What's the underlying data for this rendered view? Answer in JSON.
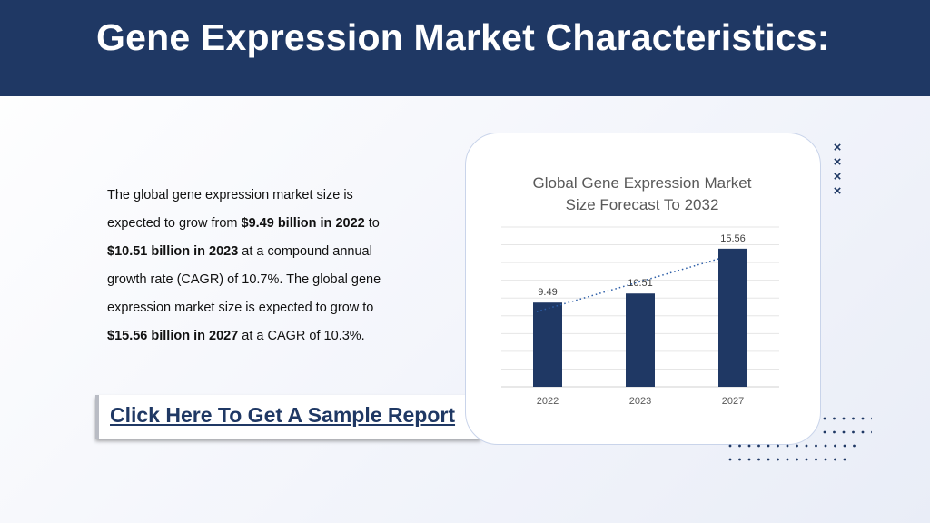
{
  "header": {
    "title": "Gene Expression Market Characteristics:"
  },
  "content": {
    "p1": "The global gene expression market size is expected to grow from ",
    "b1": "$9.49 billion in 2022",
    "p2": " to ",
    "b2": "$10.51 billion in 2023",
    "p3": " at a compound annual growth rate (CAGR) of 10.7%. The global gene expression market size is expected to grow to ",
    "b3": "$15.56 billion in 2027",
    "p4": " at a CAGR of 10.3%."
  },
  "cta": {
    "label": "Click Here To Get A Sample Report"
  },
  "chart_data": {
    "type": "bar",
    "title_line1": "Global Gene Expression Market",
    "title_line2": "Size Forecast To 2032",
    "categories": [
      "2022",
      "2023",
      "2027"
    ],
    "values": [
      9.49,
      10.51,
      15.56
    ],
    "data_labels": [
      "9.49",
      "10.51",
      "15.56"
    ],
    "trendline": "linear",
    "grid": true,
    "ylim": [
      0,
      18
    ],
    "bar_color": "#1f3864",
    "trend_color": "#2e5fa8"
  },
  "decor": {
    "accent_color": "#1f3864",
    "x_mark": "×"
  }
}
